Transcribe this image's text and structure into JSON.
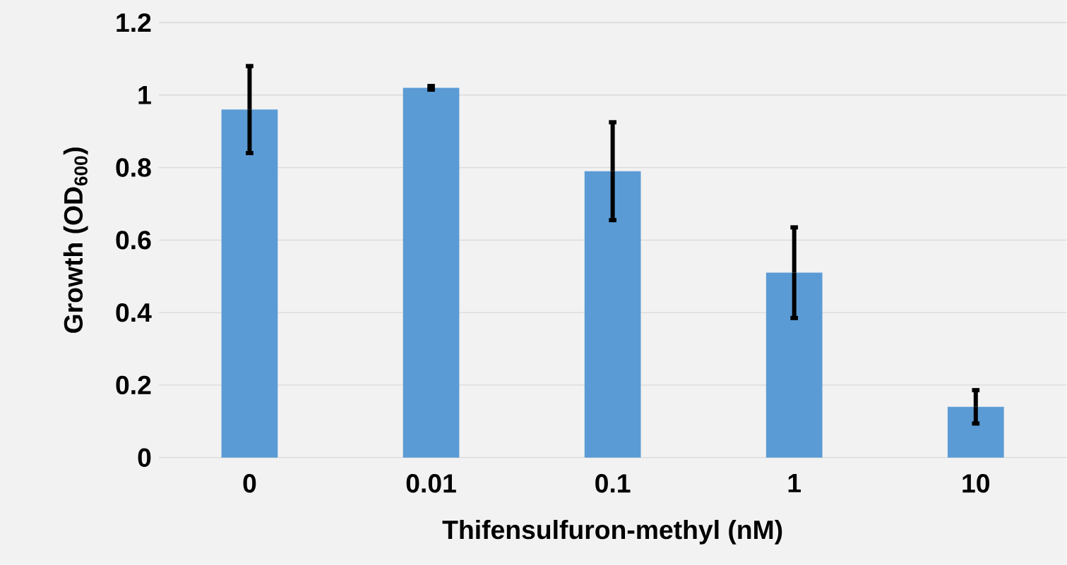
{
  "chart_data": {
    "type": "bar",
    "xlabel": "Thifensulfuron-methyl (nM)",
    "ylabel": "Growth (OD$_{600}$)",
    "categories": [
      "0",
      "0.01",
      "0.1",
      "1",
      "10"
    ],
    "values": [
      0.96,
      1.02,
      0.79,
      0.51,
      0.14
    ],
    "errors": [
      0.12,
      0.005,
      0.135,
      0.125,
      0.046
    ],
    "color": "#5b9bd5",
    "ylim": [
      0,
      1.2
    ],
    "yticks": [
      0,
      0.2,
      0.4,
      0.6,
      0.8,
      1,
      1.2
    ],
    "grid": "y"
  }
}
